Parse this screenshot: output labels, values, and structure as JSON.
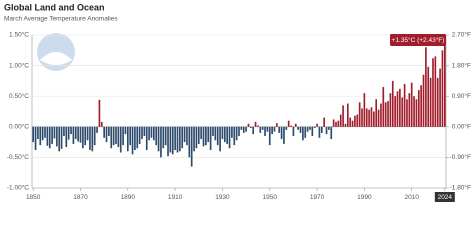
{
  "chart_data": {
    "type": "bar",
    "title": "Global Land and Ocean",
    "subtitle": "March Average Temperature Anomalies",
    "x": [
      1850,
      1851,
      1852,
      1853,
      1854,
      1855,
      1856,
      1857,
      1858,
      1859,
      1860,
      1861,
      1862,
      1863,
      1864,
      1865,
      1866,
      1867,
      1868,
      1869,
      1870,
      1871,
      1872,
      1873,
      1874,
      1875,
      1876,
      1877,
      1878,
      1879,
      1880,
      1881,
      1882,
      1883,
      1884,
      1885,
      1886,
      1887,
      1888,
      1889,
      1890,
      1891,
      1892,
      1893,
      1894,
      1895,
      1896,
      1897,
      1898,
      1899,
      1900,
      1901,
      1902,
      1903,
      1904,
      1905,
      1906,
      1907,
      1908,
      1909,
      1910,
      1911,
      1912,
      1913,
      1914,
      1915,
      1916,
      1917,
      1918,
      1919,
      1920,
      1921,
      1922,
      1923,
      1924,
      1925,
      1926,
      1927,
      1928,
      1929,
      1930,
      1931,
      1932,
      1933,
      1934,
      1935,
      1936,
      1937,
      1938,
      1939,
      1940,
      1941,
      1942,
      1943,
      1944,
      1945,
      1946,
      1947,
      1948,
      1949,
      1950,
      1951,
      1952,
      1953,
      1954,
      1955,
      1956,
      1957,
      1958,
      1959,
      1960,
      1961,
      1962,
      1963,
      1964,
      1965,
      1966,
      1967,
      1968,
      1969,
      1970,
      1971,
      1972,
      1973,
      1974,
      1975,
      1976,
      1977,
      1978,
      1979,
      1980,
      1981,
      1982,
      1983,
      1984,
      1985,
      1986,
      1987,
      1988,
      1989,
      1990,
      1991,
      1992,
      1993,
      1994,
      1995,
      1996,
      1997,
      1998,
      1999,
      2000,
      2001,
      2002,
      2003,
      2004,
      2005,
      2006,
      2007,
      2008,
      2009,
      2010,
      2011,
      2012,
      2013,
      2014,
      2015,
      2016,
      2017,
      2018,
      2019,
      2020,
      2021,
      2022,
      2023,
      2024
    ],
    "values": [
      -0.25,
      -0.38,
      -0.2,
      -0.3,
      -0.22,
      -0.18,
      -0.31,
      -0.35,
      -0.28,
      -0.19,
      -0.32,
      -0.4,
      -0.36,
      -0.15,
      -0.33,
      -0.21,
      -0.12,
      -0.28,
      -0.2,
      -0.24,
      -0.26,
      -0.35,
      -0.3,
      -0.22,
      -0.38,
      -0.4,
      -0.3,
      -0.1,
      0.44,
      0.08,
      -0.18,
      -0.25,
      -0.15,
      -0.35,
      -0.3,
      -0.28,
      -0.33,
      -0.42,
      -0.3,
      -0.12,
      -0.4,
      -0.3,
      -0.45,
      -0.38,
      -0.35,
      -0.28,
      -0.2,
      -0.15,
      -0.38,
      -0.22,
      -0.18,
      -0.22,
      -0.3,
      -0.4,
      -0.5,
      -0.35,
      -0.3,
      -0.48,
      -0.42,
      -0.45,
      -0.38,
      -0.42,
      -0.4,
      -0.35,
      -0.25,
      -0.3,
      -0.5,
      -0.65,
      -0.4,
      -0.35,
      -0.28,
      -0.2,
      -0.32,
      -0.3,
      -0.25,
      -0.38,
      -0.15,
      -0.22,
      -0.3,
      -0.4,
      -0.2,
      -0.25,
      -0.28,
      -0.35,
      -0.18,
      -0.3,
      -0.22,
      -0.15,
      -0.05,
      -0.1,
      -0.08,
      0.05,
      -0.02,
      -0.12,
      0.08,
      0.02,
      -0.1,
      -0.05,
      -0.15,
      -0.08,
      -0.3,
      -0.12,
      -0.08,
      0.06,
      -0.1,
      -0.2,
      -0.28,
      -0.05,
      0.1,
      0.02,
      -0.15,
      0.05,
      -0.05,
      -0.1,
      -0.22,
      -0.18,
      -0.08,
      -0.05,
      -0.15,
      -0.02,
      0.05,
      -0.18,
      -0.1,
      0.15,
      -0.12,
      -0.05,
      -0.2,
      0.12,
      0.08,
      0.1,
      0.2,
      0.35,
      0.05,
      0.38,
      0.15,
      0.1,
      0.18,
      0.2,
      0.4,
      0.3,
      0.55,
      0.3,
      0.28,
      0.32,
      0.25,
      0.45,
      0.28,
      0.38,
      0.65,
      0.4,
      0.42,
      0.55,
      0.75,
      0.5,
      0.58,
      0.62,
      0.48,
      0.7,
      0.45,
      0.55,
      0.72,
      0.5,
      0.45,
      0.6,
      0.68,
      0.85,
      1.3,
      0.98,
      0.8,
      1.12,
      1.15,
      0.8,
      0.95,
      1.25,
      1.35
    ],
    "color_positive": "#a11d2b",
    "color_negative": "#2c4a6b",
    "xlim": [
      1849.5,
      2024.5
    ],
    "xticks": [
      1850,
      1870,
      1890,
      1910,
      1930,
      1950,
      1970,
      1990,
      2010,
      2024
    ],
    "ylim": [
      -1,
      1.5
    ],
    "yticks": [
      {
        "value": -1,
        "label": "-1.00°C"
      },
      {
        "value": -0.5,
        "label": "-0.50°C"
      },
      {
        "value": 0,
        "label": "0.00°C"
      },
      {
        "value": 0.5,
        "label": "0.50°C"
      },
      {
        "value": 1,
        "label": "1.00°C"
      },
      {
        "value": 1.5,
        "label": "1.50°C"
      }
    ],
    "y2lim": [
      -1.8,
      2.7
    ],
    "y2ticks": [
      {
        "value": -1.8,
        "label": "-1.80°F"
      },
      {
        "value": -0.9,
        "label": "-0.90°F"
      },
      {
        "value": 0,
        "label": "0.00°F"
      },
      {
        "value": 0.9,
        "label": "0.90°F"
      },
      {
        "value": 1.8,
        "label": "1.80°F"
      },
      {
        "value": 2.7,
        "label": "2.70°F"
      }
    ],
    "grid": true,
    "annotation": {
      "text": "+1.35°C (+2.43°F)",
      "x": 2024
    }
  }
}
